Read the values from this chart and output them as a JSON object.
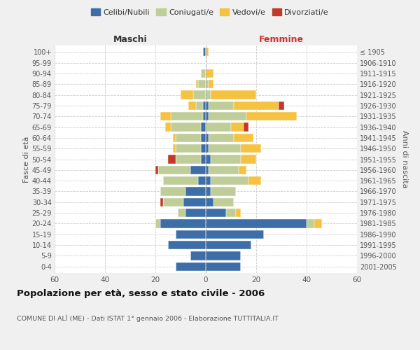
{
  "age_groups": [
    "0-4",
    "5-9",
    "10-14",
    "15-19",
    "20-24",
    "25-29",
    "30-34",
    "35-39",
    "40-44",
    "45-49",
    "50-54",
    "55-59",
    "60-64",
    "65-69",
    "70-74",
    "75-79",
    "80-84",
    "85-89",
    "90-94",
    "95-99",
    "100+"
  ],
  "birth_years": [
    "2001-2005",
    "1996-2000",
    "1991-1995",
    "1986-1990",
    "1981-1985",
    "1976-1980",
    "1971-1975",
    "1966-1970",
    "1961-1965",
    "1956-1960",
    "1951-1955",
    "1946-1950",
    "1941-1945",
    "1936-1940",
    "1931-1935",
    "1926-1930",
    "1921-1925",
    "1916-1920",
    "1911-1915",
    "1906-1910",
    "≤ 1905"
  ],
  "males": {
    "celibe": [
      12,
      6,
      15,
      12,
      18,
      8,
      9,
      8,
      3,
      6,
      2,
      2,
      2,
      2,
      1,
      1,
      0,
      0,
      0,
      0,
      1
    ],
    "coniugato": [
      0,
      0,
      0,
      0,
      2,
      3,
      8,
      10,
      14,
      13,
      10,
      10,
      10,
      12,
      13,
      3,
      5,
      3,
      2,
      0,
      0
    ],
    "vedovo": [
      0,
      0,
      0,
      0,
      0,
      0,
      0,
      0,
      0,
      0,
      0,
      1,
      1,
      2,
      4,
      3,
      5,
      1,
      0,
      0,
      0
    ],
    "divorziato": [
      0,
      0,
      0,
      0,
      0,
      0,
      1,
      0,
      0,
      1,
      3,
      0,
      0,
      0,
      0,
      0,
      0,
      0,
      0,
      0,
      0
    ]
  },
  "females": {
    "nubile": [
      14,
      14,
      18,
      23,
      40,
      8,
      3,
      2,
      2,
      1,
      2,
      1,
      1,
      0,
      1,
      1,
      0,
      0,
      0,
      0,
      0
    ],
    "coniugata": [
      0,
      0,
      0,
      0,
      3,
      4,
      8,
      10,
      15,
      12,
      12,
      13,
      10,
      10,
      15,
      10,
      2,
      1,
      0,
      0,
      0
    ],
    "vedova": [
      0,
      0,
      0,
      0,
      3,
      2,
      0,
      0,
      5,
      3,
      6,
      8,
      8,
      5,
      20,
      18,
      18,
      2,
      3,
      0,
      1
    ],
    "divorziata": [
      0,
      0,
      0,
      0,
      0,
      0,
      0,
      0,
      0,
      0,
      0,
      0,
      0,
      2,
      0,
      2,
      0,
      0,
      0,
      0,
      0
    ]
  },
  "colors": {
    "celibe": "#3d6ea8",
    "coniugato": "#bfce99",
    "vedovo": "#f5c242",
    "divorziato": "#c0392b"
  },
  "title": "Popolazione per età, sesso e stato civile - 2006",
  "subtitle": "COMUNE DI ALÌ (ME) - Dati ISTAT 1° gennaio 2006 - Elaborazione TUTTITALIA.IT",
  "xlabel_left": "Maschi",
  "xlabel_right": "Femmine",
  "ylabel_left": "Fasce di età",
  "ylabel_right": "Anni di nascita",
  "legend_labels": [
    "Celibi/Nubili",
    "Coniugati/e",
    "Vedovi/e",
    "Divorziati/e"
  ],
  "xlim": 60,
  "background_color": "#f0f0f0",
  "plot_bg_color": "#ffffff"
}
